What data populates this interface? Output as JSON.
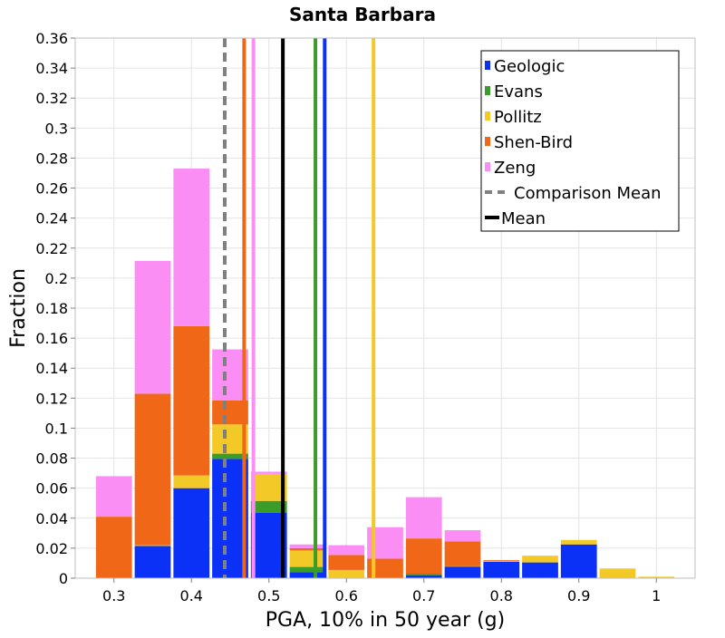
{
  "chart_data": {
    "type": "bar",
    "stacked": true,
    "title": "Santa Barbara",
    "xlabel": "PGA, 10% in 50 year (g)",
    "ylabel": "Fraction",
    "xlim": [
      0.25,
      1.05
    ],
    "ylim": [
      0,
      0.36
    ],
    "xticks": [
      "0.3",
      "0.4",
      "0.5",
      "0.6",
      "0.7",
      "0.8",
      "0.9",
      "1"
    ],
    "yticks": [
      "0",
      "0.02",
      "0.04",
      "0.06",
      "0.08",
      "0.1",
      "0.12",
      "0.14",
      "0.16",
      "0.18",
      "0.2",
      "0.22",
      "0.24",
      "0.26",
      "0.28",
      "0.3",
      "0.32",
      "0.34",
      "0.36"
    ],
    "grid": true,
    "legend_position": "top-right",
    "bin_width": 0.05,
    "bin_centers": [
      0.25,
      0.3,
      0.35,
      0.4,
      0.45,
      0.5,
      0.55,
      0.6,
      0.65,
      0.7,
      0.75,
      0.8,
      0.85,
      0.9,
      0.95,
      1.0
    ],
    "series": [
      {
        "name": "Geologic",
        "color": "#0a31f5",
        "values": [
          0,
          0,
          0.0215,
          0.06,
          0.0795,
          0.0435,
          0.004,
          0,
          0,
          0.002,
          0.0075,
          0.011,
          0.0105,
          0.0225,
          0,
          0
        ]
      },
      {
        "name": "Evans",
        "color": "#3c9c2a",
        "values": [
          0,
          0,
          0,
          0,
          0.0035,
          0.008,
          0.0035,
          0,
          0,
          0.001,
          0.0005,
          0,
          0,
          0,
          0,
          0
        ]
      },
      {
        "name": "Pollitz",
        "color": "#f3c928",
        "values": [
          0,
          0,
          0.0005,
          0.0085,
          0.0195,
          0.018,
          0.011,
          0.0055,
          0,
          0,
          0,
          0.0005,
          0.0045,
          0.003,
          0.0065,
          0.001
        ]
      },
      {
        "name": "Shen-Bird",
        "color": "#ef6717",
        "values": [
          0,
          0.041,
          0.101,
          0.0995,
          0.016,
          0,
          0.0015,
          0.01,
          0.013,
          0.0235,
          0.0165,
          0.0005,
          0,
          0,
          0,
          0
        ]
      },
      {
        "name": "Zeng",
        "color": "#fb8ef5",
        "values": [
          0,
          0.027,
          0.0885,
          0.105,
          0.034,
          0.0015,
          0.0025,
          0.0065,
          0.021,
          0.0275,
          0.0075,
          0,
          0,
          0,
          0,
          0
        ]
      }
    ],
    "mean_lines": [
      {
        "name": "Geologic",
        "x": 0.572,
        "color": "#0a31f5",
        "style": "solid"
      },
      {
        "name": "Evans",
        "x": 0.56,
        "color": "#3c9c2a",
        "style": "solid"
      },
      {
        "name": "Pollitz",
        "x": 0.635,
        "color": "#f3c928",
        "style": "solid"
      },
      {
        "name": "Shen-Bird",
        "x": 0.468,
        "color": "#ef6717",
        "style": "solid"
      },
      {
        "name": "Zeng",
        "x": 0.48,
        "color": "#fb8ef5",
        "style": "solid"
      },
      {
        "name": "Comparison Mean",
        "x": 0.443,
        "color": "#808080",
        "style": "dashed"
      },
      {
        "name": "Mean",
        "x": 0.518,
        "color": "#000000",
        "style": "solid"
      }
    ],
    "legend": [
      {
        "label": "Geologic",
        "color": "#0a31f5",
        "kind": "box"
      },
      {
        "label": "Evans",
        "color": "#3c9c2a",
        "kind": "box"
      },
      {
        "label": "Pollitz",
        "color": "#f3c928",
        "kind": "box"
      },
      {
        "label": "Shen-Bird",
        "color": "#ef6717",
        "kind": "box"
      },
      {
        "label": "Zeng",
        "color": "#fb8ef5",
        "kind": "box"
      },
      {
        "label": "Comparison Mean",
        "color": "#808080",
        "kind": "dashed-line"
      },
      {
        "label": "Mean",
        "color": "#000000",
        "kind": "line"
      }
    ]
  }
}
